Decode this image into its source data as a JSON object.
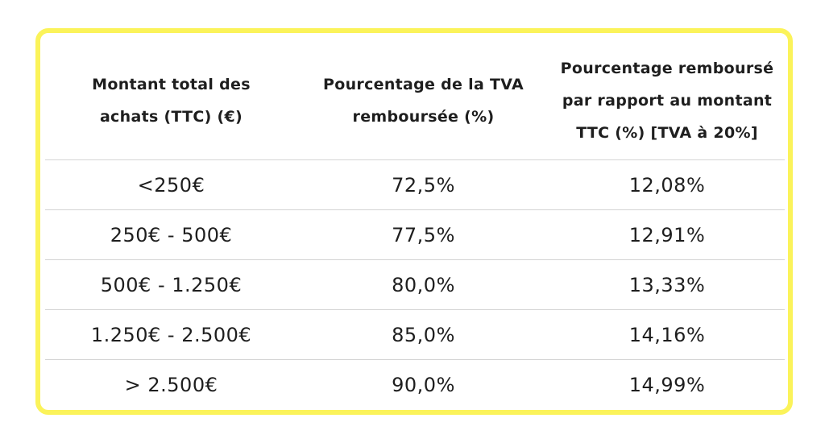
{
  "table": {
    "headers": [
      "Montant total des achats (TTC) (€)",
      "Pourcentage de la TVA remboursée (%)",
      "Pourcentage remboursé par rapport au montant TTC (%) [TVA à 20%]"
    ],
    "rows": [
      [
        "<250€",
        "72,5%",
        "12,08%"
      ],
      [
        "250€ - 500€",
        "77,5%",
        "12,91%"
      ],
      [
        "500€ - 1.250€",
        "80,0%",
        "13,33%"
      ],
      [
        "1.250€ - 2.500€",
        "85,0%",
        "14,16%"
      ],
      [
        "> 2.500€",
        "90,0%",
        "14,99%"
      ]
    ]
  },
  "colors": {
    "border": "#fbf35a",
    "rule": "#d4d4d4",
    "text": "#1e1e1e"
  }
}
